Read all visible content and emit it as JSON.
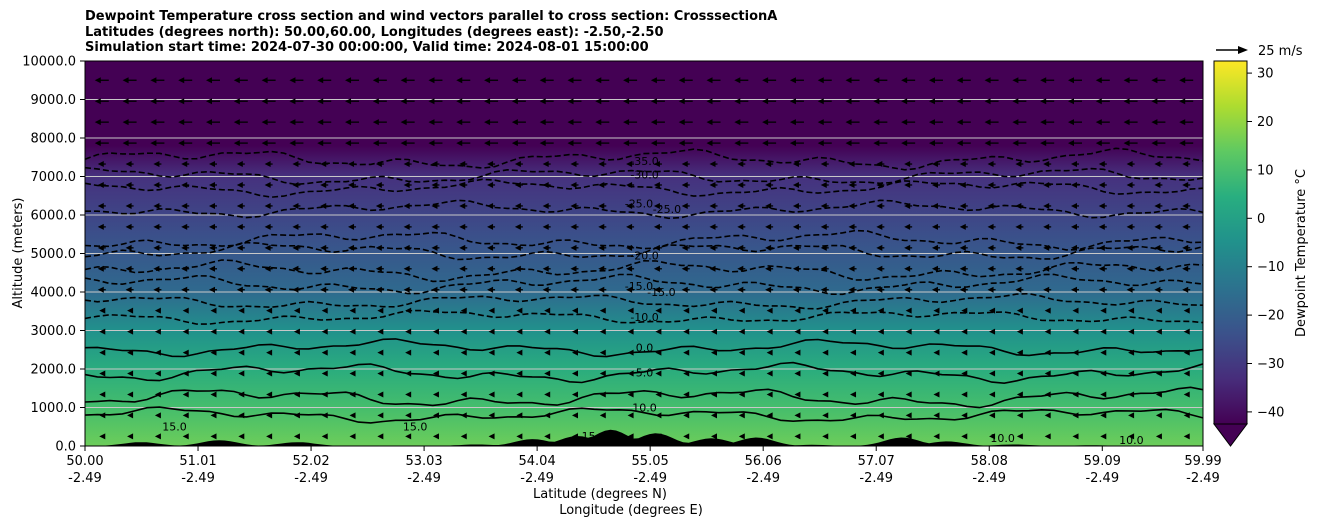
{
  "titles": [
    "Dewpoint Temperature cross section and wind vectors parallel to cross section: CrosssectionA",
    "Latitudes (degrees north): 50.00,60.00, Longitudes (degrees east): -2.50,-2.50",
    "Simulation start time: 2024-07-30 00:00:00, Valid time: 2024-08-01 15:00:00"
  ],
  "chart_data": {
    "type": "heatmap",
    "ylabel": "Altitude (meters)",
    "xlabel": "Latitude (degrees N)",
    "xlabel2": "Longitude (degrees E)",
    "xlim": [
      50.0,
      59.99
    ],
    "ylim": [
      0,
      10000
    ],
    "grid": "horizontal",
    "x_ticks": [
      {
        "lat": "50.00",
        "lon": "-2.49"
      },
      {
        "lat": "51.01",
        "lon": "-2.49"
      },
      {
        "lat": "52.02",
        "lon": "-2.49"
      },
      {
        "lat": "53.03",
        "lon": "-2.49"
      },
      {
        "lat": "54.04",
        "lon": "-2.49"
      },
      {
        "lat": "55.05",
        "lon": "-2.49"
      },
      {
        "lat": "56.06",
        "lon": "-2.49"
      },
      {
        "lat": "57.07",
        "lon": "-2.49"
      },
      {
        "lat": "58.08",
        "lon": "-2.49"
      },
      {
        "lat": "59.09",
        "lon": "-2.49"
      },
      {
        "lat": "59.99",
        "lon": "-2.49"
      }
    ],
    "y_ticks": [
      "0.0",
      "1000.0",
      "2000.0",
      "3000.0",
      "4000.0",
      "5000.0",
      "6000.0",
      "7000.0",
      "8000.0",
      "9000.0",
      "10000.0"
    ],
    "colorbar": {
      "label": "Dewpoint Temperature °C",
      "ticks": [
        -40,
        -30,
        -20,
        -10,
        0,
        10,
        20,
        30
      ],
      "range": [
        -42.5,
        32.5
      ],
      "extend": "min",
      "colormap": "viridis"
    },
    "contours": [
      {
        "value": -35,
        "label": "-35.0",
        "lat": 55.0,
        "alt": 7300,
        "style": "dashed"
      },
      {
        "value": -30,
        "label": "-30.0",
        "lat": 55.0,
        "alt": 6950,
        "style": "dashed"
      },
      {
        "value": -25,
        "label": "-25.0",
        "lat": 54.95,
        "alt": 6200,
        "style": "dashed"
      },
      {
        "value": -25,
        "label": "-25.0",
        "lat": 55.2,
        "alt": 6050,
        "style": "dashed"
      },
      {
        "value": -20,
        "label": "-20.0",
        "lat": 55.0,
        "alt": 4850,
        "style": "dashed"
      },
      {
        "value": -15,
        "label": "-15.0",
        "lat": 54.95,
        "alt": 4050,
        "style": "dashed"
      },
      {
        "value": -15,
        "label": "-15.0",
        "lat": 55.15,
        "alt": 3900,
        "style": "dashed"
      },
      {
        "value": -10,
        "label": "-10.0",
        "lat": 55.0,
        "alt": 3250,
        "style": "dashed"
      },
      {
        "value": 0,
        "label": "0.0",
        "lat": 55.0,
        "alt": 2450,
        "style": "solid"
      },
      {
        "value": 5,
        "label": "5.0",
        "lat": 55.0,
        "alt": 1800,
        "style": "solid"
      },
      {
        "value": 10,
        "label": "10.0",
        "lat": 55.0,
        "alt": 900,
        "style": "solid"
      },
      {
        "value": 10,
        "label": "10.0",
        "lat": 58.2,
        "alt": 100,
        "style": "solid"
      },
      {
        "value": 10,
        "label": "10.0",
        "lat": 59.35,
        "alt": 50,
        "style": "solid"
      },
      {
        "value": 15,
        "label": "15.0",
        "lat": 50.8,
        "alt": 400,
        "style": "solid"
      },
      {
        "value": 15,
        "label": "15.0",
        "lat": 52.95,
        "alt": 400,
        "style": "solid"
      },
      {
        "value": 15,
        "label": "15",
        "lat": 54.5,
        "alt": 150,
        "style": "solid"
      }
    ],
    "wind_reference": {
      "label": "25 m/s",
      "speed": 25
    },
    "wind_vectors": {
      "direction": "southward (toward 50.00 N)",
      "approx_speed_upper": 12,
      "approx_speed_lower": 4
    }
  },
  "colors": {
    "background": "#ffffff",
    "grid": "#c8c8c8",
    "terrain": "#000000",
    "viridis": [
      "#440154",
      "#472d7b",
      "#3b528b",
      "#2c728e",
      "#21918c",
      "#28ae80",
      "#5ec962",
      "#addc30",
      "#fde725"
    ]
  }
}
